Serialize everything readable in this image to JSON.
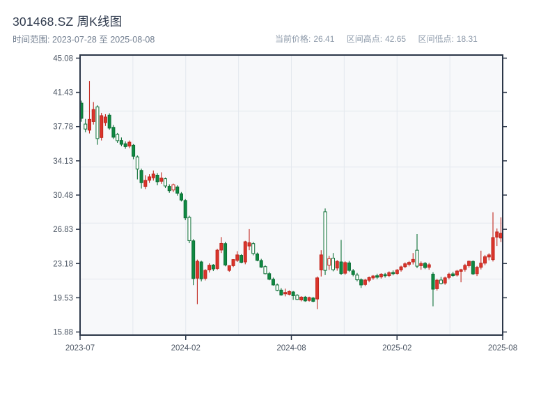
{
  "header": {
    "title": "301468.SZ 周K线图",
    "subtitle": "时间范围: 2023-07-28 至 2025-08-08",
    "info": [
      {
        "label": "当前价格:",
        "value": "26.41"
      },
      {
        "label": "区间高点:",
        "value": "42.65"
      },
      {
        "label": "区间低点:",
        "value": "18.31"
      }
    ]
  },
  "chart_data": {
    "type": "candlestick",
    "title": "301468.SZ 周K线图",
    "interval": "weekly",
    "date_range": {
      "start": "2023-07-28",
      "end": "2025-08-08"
    },
    "current_price": 26.41,
    "range_high": 42.65,
    "range_low": 18.31,
    "ylim": [
      15.88,
      45.08
    ],
    "y_ticks": [
      45.08,
      41.43,
      37.78,
      34.13,
      30.48,
      26.83,
      23.18,
      19.53,
      15.88
    ],
    "x_tick_labels": [
      "2023-07",
      "2024-02",
      "2024-08",
      "2025-02",
      "2025-08"
    ],
    "grid": {
      "x_divisions": 8,
      "y_divisions": 5,
      "shown": true
    },
    "legend": null,
    "colors": {
      "up": "#db352c",
      "up_edge": "#c1271e",
      "down": "#0f8a42",
      "down_edge": "#0b6e34",
      "hollow_fill": "#ffffff",
      "plot_bg": "#f7f8fa",
      "grid": "#e4e8ee",
      "axis": "#2b3648",
      "tick_label": "#4b5563"
    },
    "candles_format": [
      "open",
      "high",
      "low",
      "close",
      "hollow"
    ],
    "candles": [
      [
        40.28,
        40.55,
        38.3,
        38.66,
        0
      ],
      [
        38.05,
        38.6,
        37.18,
        37.52,
        1
      ],
      [
        37.4,
        42.65,
        37.05,
        38.55,
        0
      ],
      [
        38.32,
        40.4,
        38.0,
        39.6,
        0
      ],
      [
        39.88,
        40.05,
        35.85,
        36.5,
        1
      ],
      [
        36.62,
        39.25,
        36.3,
        38.95,
        0
      ],
      [
        38.2,
        39.1,
        37.85,
        38.8,
        0
      ],
      [
        39.0,
        39.2,
        37.45,
        37.62,
        0
      ],
      [
        37.7,
        37.95,
        36.45,
        36.65,
        0
      ],
      [
        36.95,
        37.1,
        36.05,
        36.28,
        1
      ],
      [
        36.3,
        36.62,
        35.68,
        35.9,
        0
      ],
      [
        35.95,
        36.2,
        35.42,
        35.65,
        0
      ],
      [
        35.7,
        36.3,
        35.48,
        36.12,
        0
      ],
      [
        35.8,
        35.92,
        34.3,
        34.62,
        0
      ],
      [
        34.55,
        34.7,
        32.15,
        33.25,
        1
      ],
      [
        33.1,
        33.3,
        31.18,
        31.8,
        0
      ],
      [
        31.4,
        32.6,
        31.12,
        32.05,
        0
      ],
      [
        32.06,
        32.7,
        31.78,
        32.42,
        0
      ],
      [
        32.32,
        33.1,
        32.02,
        32.72,
        0
      ],
      [
        32.6,
        32.82,
        31.52,
        31.9,
        0
      ],
      [
        31.95,
        32.9,
        31.68,
        32.3,
        0
      ],
      [
        32.22,
        32.35,
        31.22,
        31.45,
        1
      ],
      [
        31.4,
        31.62,
        30.72,
        30.95,
        0
      ],
      [
        31.02,
        31.7,
        30.8,
        31.58,
        1
      ],
      [
        31.35,
        31.52,
        30.42,
        30.68,
        0
      ],
      [
        30.62,
        30.8,
        29.8,
        29.95,
        0
      ],
      [
        29.9,
        30.05,
        27.8,
        28.05,
        0
      ],
      [
        28.1,
        28.28,
        25.35,
        25.62,
        1
      ],
      [
        25.6,
        25.78,
        20.88,
        21.58,
        0
      ],
      [
        21.62,
        23.6,
        18.85,
        23.42,
        0
      ],
      [
        23.35,
        23.48,
        21.28,
        21.55,
        0
      ],
      [
        21.6,
        22.58,
        21.38,
        22.45,
        0
      ],
      [
        22.5,
        23.2,
        22.22,
        23.0,
        0
      ],
      [
        23.02,
        23.12,
        22.38,
        22.6,
        0
      ],
      [
        22.65,
        24.75,
        22.5,
        24.6,
        0
      ],
      [
        24.62,
        26.0,
        24.3,
        25.32,
        0
      ],
      [
        25.3,
        25.5,
        22.88,
        23.02,
        0
      ],
      [
        22.45,
        23.0,
        22.3,
        22.95,
        0
      ],
      [
        22.95,
        23.65,
        22.8,
        23.6,
        0
      ],
      [
        23.52,
        24.5,
        23.35,
        24.1,
        0
      ],
      [
        24.05,
        24.18,
        23.22,
        23.3,
        0
      ],
      [
        23.35,
        25.6,
        23.1,
        25.5,
        0
      ],
      [
        25.05,
        26.85,
        24.6,
        25.4,
        0
      ],
      [
        25.3,
        25.48,
        24.05,
        24.25,
        1
      ],
      [
        24.2,
        24.35,
        23.42,
        23.52,
        0
      ],
      [
        23.5,
        23.68,
        22.72,
        22.8,
        0
      ],
      [
        22.85,
        23.0,
        22.02,
        22.1,
        1
      ],
      [
        22.1,
        22.28,
        21.4,
        21.5,
        0
      ],
      [
        21.5,
        21.68,
        20.82,
        20.9,
        0
      ],
      [
        20.9,
        21.05,
        20.22,
        20.32,
        1
      ],
      [
        20.35,
        20.55,
        19.75,
        19.82,
        0
      ],
      [
        19.95,
        20.5,
        19.68,
        20.1,
        0
      ],
      [
        19.9,
        20.32,
        19.78,
        20.2,
        0
      ],
      [
        20.15,
        20.25,
        19.3,
        19.75,
        0
      ],
      [
        19.8,
        19.92,
        19.28,
        19.35,
        1
      ],
      [
        19.3,
        19.7,
        19.15,
        19.6,
        0
      ],
      [
        19.6,
        19.72,
        19.1,
        19.2,
        0
      ],
      [
        19.25,
        19.65,
        19.12,
        19.55,
        0
      ],
      [
        19.5,
        19.62,
        19.05,
        19.15,
        0
      ],
      [
        19.4,
        21.8,
        18.31,
        21.65,
        0
      ],
      [
        22.5,
        24.6,
        21.8,
        24.1,
        0
      ],
      [
        28.7,
        29.05,
        21.95,
        22.45,
        1
      ],
      [
        23.0,
        24.0,
        22.5,
        23.7,
        1
      ],
      [
        23.75,
        24.3,
        22.35,
        22.52,
        1
      ],
      [
        22.7,
        23.55,
        22.42,
        23.4,
        0
      ],
      [
        23.35,
        25.7,
        21.95,
        22.12,
        0
      ],
      [
        22.15,
        23.42,
        21.98,
        23.28,
        0
      ],
      [
        23.25,
        23.45,
        22.28,
        22.45,
        0
      ],
      [
        22.4,
        22.6,
        21.82,
        22.0,
        0
      ],
      [
        21.95,
        22.18,
        21.28,
        21.45,
        1
      ],
      [
        21.45,
        21.6,
        20.58,
        20.9,
        0
      ],
      [
        20.95,
        21.55,
        20.78,
        21.42,
        0
      ],
      [
        21.4,
        21.8,
        21.18,
        21.68,
        0
      ],
      [
        21.65,
        21.95,
        21.45,
        21.85,
        0
      ],
      [
        21.88,
        22.1,
        21.52,
        21.72,
        0
      ],
      [
        21.75,
        22.15,
        21.58,
        22.05,
        0
      ],
      [
        22.0,
        22.18,
        21.68,
        21.88,
        0
      ],
      [
        21.9,
        22.35,
        21.72,
        22.2,
        0
      ],
      [
        22.22,
        22.45,
        21.92,
        22.1,
        0
      ],
      [
        22.12,
        22.6,
        21.98,
        22.48,
        0
      ],
      [
        22.5,
        22.95,
        22.32,
        22.82,
        0
      ],
      [
        22.85,
        23.3,
        22.68,
        23.15,
        0
      ],
      [
        23.1,
        23.45,
        22.88,
        23.3,
        0
      ],
      [
        23.35,
        24.3,
        23.08,
        23.62,
        0
      ],
      [
        24.6,
        26.32,
        22.68,
        22.9,
        1
      ],
      [
        22.95,
        23.4,
        22.52,
        23.18,
        0
      ],
      [
        23.2,
        23.35,
        22.58,
        22.75,
        0
      ],
      [
        22.78,
        23.25,
        22.52,
        23.05,
        0
      ],
      [
        22.05,
        22.25,
        18.62,
        20.45,
        0
      ],
      [
        20.5,
        21.55,
        20.3,
        21.4,
        0
      ],
      [
        21.42,
        21.75,
        20.95,
        21.05,
        1
      ],
      [
        21.1,
        21.78,
        20.92,
        21.65,
        0
      ],
      [
        21.7,
        22.2,
        21.5,
        22.05,
        0
      ],
      [
        22.08,
        22.3,
        21.75,
        21.9,
        0
      ],
      [
        21.95,
        22.5,
        21.8,
        22.38,
        0
      ],
      [
        22.35,
        22.62,
        21.18,
        22.52,
        0
      ],
      [
        22.55,
        23.15,
        22.32,
        22.98,
        0
      ],
      [
        22.95,
        23.5,
        22.75,
        23.42,
        0
      ],
      [
        23.4,
        23.52,
        21.95,
        22.08,
        0
      ],
      [
        22.1,
        22.92,
        21.85,
        22.78,
        0
      ],
      [
        22.78,
        24.55,
        22.55,
        23.22,
        0
      ],
      [
        23.22,
        24.1,
        23.0,
        23.9,
        0
      ],
      [
        23.88,
        24.28,
        23.52,
        24.1,
        0
      ],
      [
        23.6,
        28.65,
        23.4,
        25.95,
        0
      ],
      [
        26.0,
        26.92,
        25.05,
        26.55,
        0
      ],
      [
        25.9,
        28.1,
        25.48,
        26.41,
        0
      ]
    ]
  }
}
